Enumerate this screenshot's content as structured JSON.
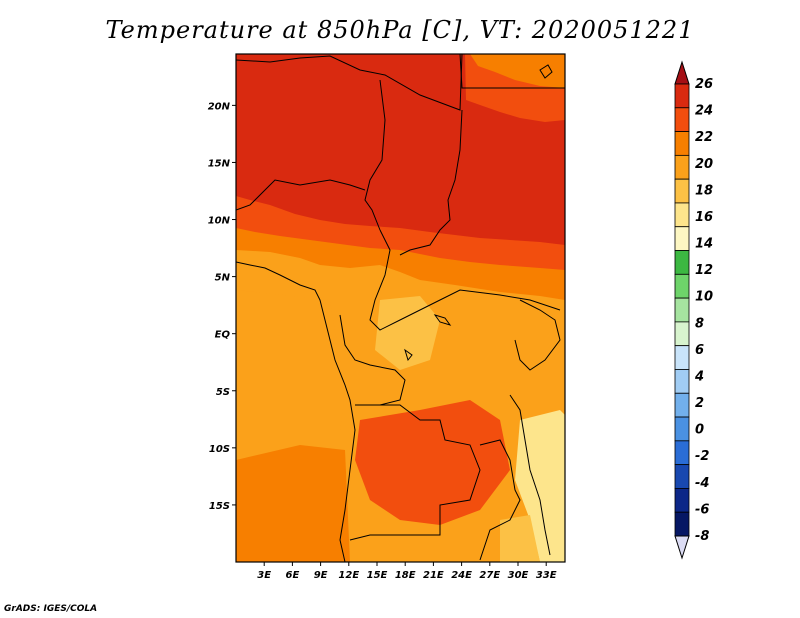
{
  "title": "Temperature at 850hPa [C], VT: 2020051221",
  "footer": "GrADS: IGES/COLA",
  "map": {
    "variable": "Temperature at 850hPa",
    "units": "C",
    "valid_time": "2020051221",
    "lat_ticks": [
      {
        "value": 20,
        "label": "20N"
      },
      {
        "value": 15,
        "label": "15N"
      },
      {
        "value": 10,
        "label": "10N"
      },
      {
        "value": 5,
        "label": "5N"
      },
      {
        "value": 0,
        "label": "EQ"
      },
      {
        "value": -5,
        "label": "5S"
      },
      {
        "value": -10,
        "label": "10S"
      },
      {
        "value": -15,
        "label": "15S"
      }
    ],
    "lon_ticks": [
      {
        "value": 3,
        "label": "3E"
      },
      {
        "value": 6,
        "label": "6E"
      },
      {
        "value": 9,
        "label": "9E"
      },
      {
        "value": 12,
        "label": "12E"
      },
      {
        "value": 15,
        "label": "15E"
      },
      {
        "value": 18,
        "label": "18E"
      },
      {
        "value": 21,
        "label": "21E"
      },
      {
        "value": 24,
        "label": "24E"
      },
      {
        "value": 27,
        "label": "27E"
      },
      {
        "value": 30,
        "label": "30E"
      },
      {
        "value": 33,
        "label": "33E"
      }
    ],
    "lon_range": [
      0,
      35
    ],
    "lat_range": [
      -20,
      24.5
    ]
  },
  "colorbar": {
    "levels": [
      "26",
      "24",
      "22",
      "20",
      "18",
      "16",
      "14",
      "12",
      "10",
      "8",
      "6",
      "4",
      "2",
      "0",
      "-2",
      "-4",
      "-6",
      "-8"
    ],
    "colors": [
      "#a50f15",
      "#d92a10",
      "#f24e0e",
      "#f77f00",
      "#fba11a",
      "#fcc145",
      "#fde58c",
      "#fdf7c3",
      "#3cb842",
      "#6ed46a",
      "#a6e4a0",
      "#d8f4ce",
      "#c9e4fa",
      "#a1cdf4",
      "#72b0ec",
      "#4a91e2",
      "#2a6dd6",
      "#1848b0",
      "#0c2788",
      "#061764",
      "#dcdcf4"
    ]
  }
}
